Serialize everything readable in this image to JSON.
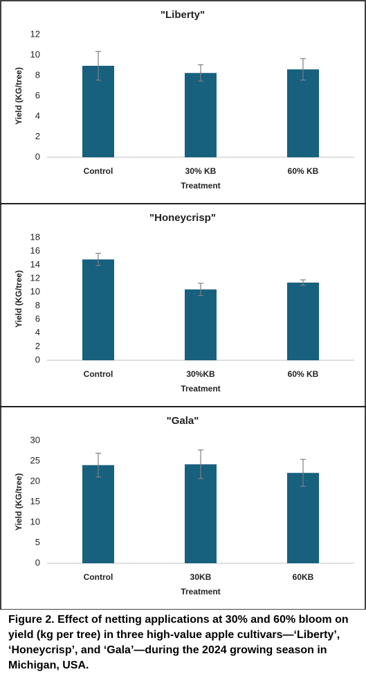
{
  "chart_data": [
    {
      "type": "bar",
      "title": "\"Liberty\"",
      "x_label": "Treatment",
      "y_label": "Yield (KG/tree)",
      "categories": [
        "Control",
        "30% KB",
        "60% KB"
      ],
      "values": [
        8.95,
        8.25,
        8.6
      ],
      "errors": [
        1.4,
        0.8,
        1.05
      ],
      "color": "#17607e",
      "error_color": "#7f7f7f",
      "ylim": [
        0,
        12
      ],
      "yticks": [
        0,
        2,
        4,
        6,
        8,
        10,
        12
      ],
      "grid": false
    },
    {
      "type": "bar",
      "title": "\"Honeycrisp\"",
      "x_label": "Treatment",
      "y_label": "Yield (KG/tree)",
      "categories": [
        "Control",
        "30%KB",
        "60% KB"
      ],
      "values": [
        14.8,
        10.4,
        11.4
      ],
      "errors": [
        0.9,
        0.9,
        0.4
      ],
      "color": "#17607e",
      "error_color": "#7f7f7f",
      "ylim": [
        0,
        18
      ],
      "yticks": [
        0,
        2,
        4,
        6,
        8,
        10,
        12,
        14,
        16,
        18
      ],
      "grid": false
    },
    {
      "type": "bar",
      "title": "\"Gala\"",
      "x_label": "Treatment",
      "y_label": "Yield (KG/tree)",
      "categories": [
        "Control",
        "30KB",
        "60KB"
      ],
      "values": [
        24.0,
        24.2,
        22.1
      ],
      "errors": [
        2.9,
        3.5,
        3.3
      ],
      "color": "#17607e",
      "error_color": "#7f7f7f",
      "ylim": [
        0,
        30
      ],
      "yticks": [
        0,
        5,
        10,
        15,
        20,
        25,
        30
      ],
      "grid": false
    }
  ],
  "caption": "Figure 2. Effect of netting applications at 30% and 60% bloom on yield (kg per tree) in three high-value apple cultivars—‘Liberty’, ‘Honeycrisp’, and ‘Gala’—during the 2024 growing season in Michigan, USA."
}
